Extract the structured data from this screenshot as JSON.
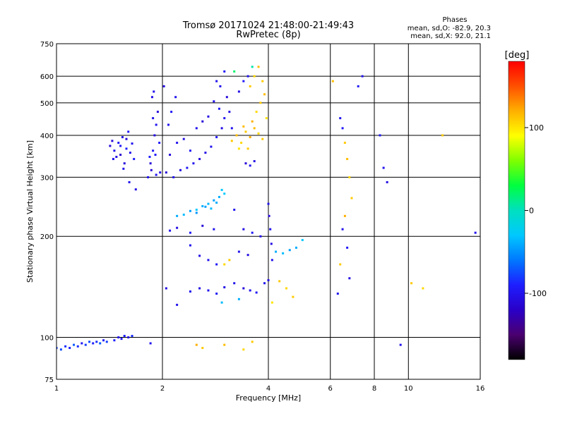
{
  "chart_data": {
    "type": "scatter",
    "title": "Tromsø 20171024 21:48:00-21:49:43",
    "subtitle": "RwPretec (8p)",
    "xlabel": "Frequency [MHz]",
    "ylabel": "Stationary phase Virtual Height [km]",
    "x_scale": "log2",
    "y_scale": "log",
    "xlim": [
      1,
      16
    ],
    "ylim": [
      75,
      750
    ],
    "x_ticks": [
      "1",
      "2",
      "4",
      "6",
      "8",
      "10",
      "16"
    ],
    "x_tick_values": [
      1,
      2,
      4,
      6,
      8,
      10,
      16
    ],
    "x_grid": [
      2,
      4,
      6,
      8,
      10
    ],
    "y_ticks": [
      "75",
      "100",
      "200",
      "300",
      "400",
      "500",
      "600",
      "750"
    ],
    "y_tick_values": [
      75,
      100,
      200,
      300,
      400,
      500,
      600,
      750
    ],
    "y_grid": [
      100,
      200,
      300,
      400,
      500,
      600
    ],
    "stats": {
      "title": "Phases",
      "line1": "mean, sd,O: -82.9, 20.3",
      "line2": "mean, sd,X:  92.0, 21.1"
    },
    "colorbar": {
      "label": "[deg]",
      "range": [
        -180,
        180
      ],
      "ticks": [
        "100",
        "0",
        "-100"
      ],
      "tick_values": [
        100,
        0,
        -100
      ],
      "colors": [
        "#000000",
        "#5a0a78",
        "#1e1eff",
        "#00c8ff",
        "#00ff7f",
        "#00ff00",
        "#c8ff00",
        "#ffff00",
        "#ff8c00",
        "#ff0000"
      ]
    },
    "points": [
      [
        1.0,
        93,
        -80
      ],
      [
        1.03,
        92,
        -75
      ],
      [
        1.06,
        94,
        -85
      ],
      [
        1.09,
        93,
        -90
      ],
      [
        1.12,
        95,
        -70
      ],
      [
        1.15,
        94,
        -85
      ],
      [
        1.18,
        96,
        -95
      ],
      [
        1.21,
        95,
        -80
      ],
      [
        1.24,
        97,
        -75
      ],
      [
        1.27,
        96,
        -90
      ],
      [
        1.3,
        97,
        -85
      ],
      [
        1.33,
        96,
        -70
      ],
      [
        1.36,
        98,
        -95
      ],
      [
        1.39,
        97,
        -80
      ],
      [
        1.46,
        98,
        -90
      ],
      [
        1.5,
        100,
        -100
      ],
      [
        1.53,
        99,
        -95
      ],
      [
        1.56,
        101,
        -90
      ],
      [
        1.6,
        100,
        -105
      ],
      [
        1.64,
        101,
        -85
      ],
      [
        1.42,
        372,
        -110
      ],
      [
        1.46,
        360,
        -100
      ],
      [
        1.5,
        380,
        -95
      ],
      [
        1.54,
        395,
        -105
      ],
      [
        1.45,
        340,
        -100
      ],
      [
        1.52,
        350,
        -115
      ],
      [
        1.58,
        365,
        -90
      ],
      [
        1.62,
        355,
        -100
      ],
      [
        1.56,
        330,
        -110
      ],
      [
        1.6,
        410,
        -95
      ],
      [
        1.48,
        345,
        -105
      ],
      [
        1.64,
        378,
        -100
      ],
      [
        1.58,
        390,
        -110
      ],
      [
        1.52,
        372,
        -95
      ],
      [
        1.55,
        318,
        -100
      ],
      [
        1.44,
        385,
        -110
      ],
      [
        1.66,
        340,
        -90
      ],
      [
        1.61,
        290,
        -100
      ],
      [
        1.68,
        276,
        -105
      ],
      [
        1.82,
        300,
        -100
      ],
      [
        1.85,
        330,
        -110
      ],
      [
        1.88,
        360,
        -95
      ],
      [
        1.9,
        400,
        -105
      ],
      [
        1.92,
        430,
        -100
      ],
      [
        1.94,
        470,
        -110
      ],
      [
        1.87,
        520,
        -105
      ],
      [
        1.89,
        540,
        -100
      ],
      [
        1.96,
        380,
        -95
      ],
      [
        1.97,
        310,
        -105
      ],
      [
        1.86,
        315,
        -110
      ],
      [
        1.92,
        305,
        -100
      ],
      [
        1.84,
        345,
        -90
      ],
      [
        1.91,
        350,
        -95
      ],
      [
        1.88,
        450,
        -100
      ],
      [
        2.05,
        310,
        -110
      ],
      [
        2.15,
        300,
        -100
      ],
      [
        2.25,
        315,
        -105
      ],
      [
        2.35,
        320,
        -95
      ],
      [
        2.45,
        330,
        -100
      ],
      [
        2.55,
        340,
        -110
      ],
      [
        2.65,
        355,
        -105
      ],
      [
        2.75,
        370,
        -100
      ],
      [
        2.85,
        395,
        -95
      ],
      [
        2.95,
        420,
        -105
      ],
      [
        3.0,
        450,
        -100
      ],
      [
        2.9,
        480,
        -95
      ],
      [
        2.8,
        505,
        -100
      ],
      [
        2.1,
        350,
        -110
      ],
      [
        2.2,
        380,
        -100
      ],
      [
        2.3,
        390,
        -105
      ],
      [
        2.4,
        360,
        -95
      ],
      [
        2.5,
        420,
        -100
      ],
      [
        2.6,
        440,
        -110
      ],
      [
        2.7,
        455,
        -105
      ],
      [
        2.08,
        430,
        -100
      ],
      [
        2.12,
        470,
        -95
      ],
      [
        2.02,
        560,
        -105
      ],
      [
        2.18,
        520,
        -100
      ],
      [
        2.92,
        560,
        -100
      ],
      [
        3.0,
        620,
        -95
      ],
      [
        3.1,
        470,
        -105
      ],
      [
        3.15,
        420,
        -100
      ],
      [
        3.05,
        520,
        -110
      ],
      [
        2.85,
        580,
        -100
      ],
      [
        3.15,
        385,
        110
      ],
      [
        3.25,
        400,
        115
      ],
      [
        3.35,
        380,
        105
      ],
      [
        3.45,
        410,
        110
      ],
      [
        3.55,
        395,
        120
      ],
      [
        3.65,
        420,
        115
      ],
      [
        3.75,
        405,
        105
      ],
      [
        3.85,
        390,
        110
      ],
      [
        3.3,
        365,
        100
      ],
      [
        3.4,
        425,
        115
      ],
      [
        3.5,
        365,
        110
      ],
      [
        3.6,
        440,
        120
      ],
      [
        3.7,
        470,
        105
      ],
      [
        3.8,
        500,
        110
      ],
      [
        3.9,
        530,
        115
      ],
      [
        3.55,
        560,
        110
      ],
      [
        3.65,
        600,
        105
      ],
      [
        3.75,
        640,
        115
      ],
      [
        3.85,
        580,
        110
      ],
      [
        3.95,
        450,
        100
      ],
      [
        3.45,
        330,
        -110
      ],
      [
        3.55,
        325,
        -100
      ],
      [
        3.65,
        335,
        -105
      ],
      [
        3.5,
        600,
        -100
      ],
      [
        3.4,
        580,
        -95
      ],
      [
        3.3,
        540,
        -105
      ],
      [
        3.6,
        640,
        5
      ],
      [
        3.2,
        620,
        20
      ],
      [
        2.2,
        230,
        -40
      ],
      [
        2.3,
        232,
        -35
      ],
      [
        2.4,
        238,
        -45
      ],
      [
        2.5,
        240,
        -30
      ],
      [
        2.6,
        246,
        -40
      ],
      [
        2.7,
        250,
        -35
      ],
      [
        2.8,
        256,
        -45
      ],
      [
        2.9,
        262,
        -40
      ],
      [
        3.0,
        268,
        -30
      ],
      [
        2.5,
        235,
        -50
      ],
      [
        2.65,
        245,
        -45
      ],
      [
        2.75,
        242,
        -35
      ],
      [
        2.85,
        252,
        -40
      ],
      [
        2.95,
        275,
        -30
      ],
      [
        2.1,
        208,
        -100
      ],
      [
        2.2,
        212,
        -105
      ],
      [
        2.4,
        205,
        -95
      ],
      [
        2.6,
        215,
        -110
      ],
      [
        2.8,
        210,
        -100
      ],
      [
        3.2,
        240,
        -100
      ],
      [
        3.4,
        210,
        -105
      ],
      [
        3.6,
        205,
        -95
      ],
      [
        3.8,
        200,
        -100
      ],
      [
        4.0,
        250,
        -100
      ],
      [
        4.02,
        230,
        -110
      ],
      [
        4.05,
        210,
        -100
      ],
      [
        4.08,
        190,
        -105
      ],
      [
        4.1,
        170,
        -100
      ],
      [
        2.4,
        188,
        -100
      ],
      [
        2.55,
        175,
        -105
      ],
      [
        2.7,
        170,
        -100
      ],
      [
        2.85,
        165,
        -95
      ],
      [
        3.3,
        180,
        -100
      ],
      [
        3.5,
        176,
        -105
      ],
      [
        4.2,
        180,
        -40
      ],
      [
        4.4,
        178,
        -35
      ],
      [
        4.6,
        182,
        -45
      ],
      [
        4.8,
        185,
        -40
      ],
      [
        5.0,
        195,
        -30
      ],
      [
        3.1,
        170,
        110
      ],
      [
        3.0,
        165,
        105
      ],
      [
        2.4,
        137,
        -100
      ],
      [
        2.55,
        140,
        -105
      ],
      [
        2.7,
        138,
        -100
      ],
      [
        2.85,
        135,
        -95
      ],
      [
        3.0,
        141,
        -105
      ],
      [
        3.2,
        145,
        -100
      ],
      [
        3.4,
        140,
        -110
      ],
      [
        3.55,
        138,
        -100
      ],
      [
        3.7,
        136,
        -95
      ],
      [
        3.9,
        145,
        -100
      ],
      [
        4.0,
        148,
        -105
      ],
      [
        4.3,
        147,
        110
      ],
      [
        4.5,
        140,
        105
      ],
      [
        4.7,
        132,
        110
      ],
      [
        4.1,
        127,
        100
      ],
      [
        3.3,
        130,
        -40
      ],
      [
        2.95,
        127,
        -35
      ],
      [
        2.5,
        95,
        120
      ],
      [
        2.6,
        93,
        110
      ],
      [
        3.0,
        95,
        115
      ],
      [
        3.4,
        92,
        105
      ],
      [
        3.6,
        97,
        110
      ],
      [
        1.85,
        96,
        -100
      ],
      [
        2.2,
        125,
        -100
      ],
      [
        2.05,
        140,
        -105
      ],
      [
        6.4,
        450,
        -100
      ],
      [
        6.5,
        420,
        -95
      ],
      [
        6.6,
        380,
        110
      ],
      [
        6.7,
        340,
        115
      ],
      [
        6.8,
        300,
        105
      ],
      [
        6.9,
        260,
        110
      ],
      [
        6.6,
        230,
        120
      ],
      [
        6.5,
        210,
        -100
      ],
      [
        6.7,
        185,
        -95
      ],
      [
        6.4,
        165,
        110
      ],
      [
        6.8,
        150,
        -105
      ],
      [
        6.3,
        135,
        -100
      ],
      [
        6.1,
        580,
        115
      ],
      [
        8.5,
        320,
        -100
      ],
      [
        8.3,
        400,
        -95
      ],
      [
        8.7,
        290,
        -105
      ],
      [
        9.5,
        95,
        -100
      ],
      [
        12.5,
        400,
        110
      ],
      [
        15.5,
        205,
        -100
      ],
      [
        11.0,
        140,
        105
      ],
      [
        7.4,
        600,
        -100
      ],
      [
        7.2,
        560,
        -95
      ],
      [
        10.2,
        145,
        110
      ]
    ]
  }
}
